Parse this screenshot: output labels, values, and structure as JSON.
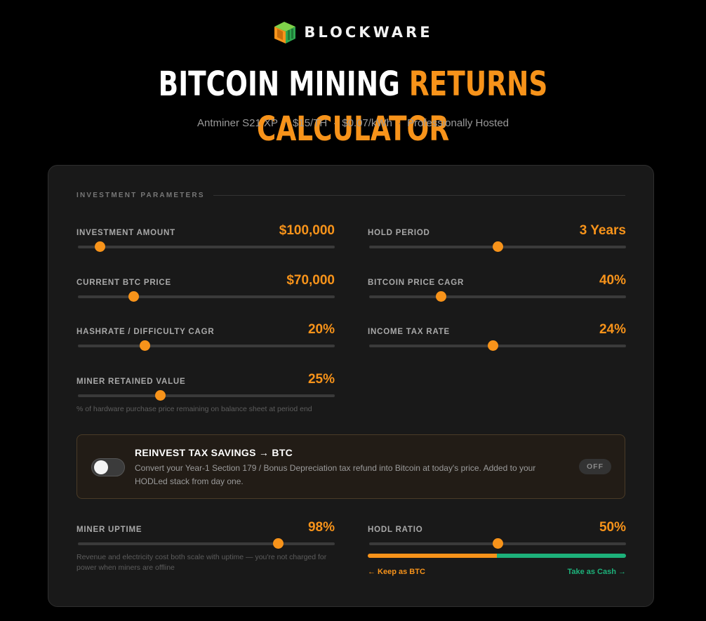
{
  "brand": {
    "name": "BLOCKWARE"
  },
  "title": {
    "part1": "BITCOIN MINING",
    "part2": "RETURNS CALCULATOR"
  },
  "subtitle": {
    "items": [
      "Antminer S21 XP",
      "$15/TH",
      "$0.07/kWh",
      "Professionally Hosted"
    ],
    "separator": "·"
  },
  "section": {
    "heading": "INVESTMENT PARAMETERS"
  },
  "params": {
    "investment": {
      "label": "INVESTMENT AMOUNT",
      "value": "$100,000",
      "position": 0.085
    },
    "hold": {
      "label": "HOLD PERIOD",
      "value": "3 Years",
      "position": 0.5
    },
    "btc_price": {
      "label": "CURRENT BTC PRICE",
      "value": "$70,000",
      "position": 0.215
    },
    "btc_cagr": {
      "label": "BITCOIN PRICE CAGR",
      "value": "40%",
      "position": 0.28
    },
    "hash_cagr": {
      "label": "HASHRATE / DIFFICULTY CAGR",
      "value": "20%",
      "position": 0.26
    },
    "tax_rate": {
      "label": "INCOME TAX RATE",
      "value": "24%",
      "position": 0.48
    },
    "retained": {
      "label": "MINER RETAINED VALUE",
      "value": "25%",
      "position": 0.32,
      "note": "% of hardware purchase price remaining on balance sheet at period end"
    },
    "uptime": {
      "label": "MINER UPTIME",
      "value": "98%",
      "position": 0.78,
      "note": "Revenue and electricity cost both scale with uptime — you're not charged for power when miners are offline"
    },
    "hodl": {
      "label": "HODL RATIO",
      "value": "50%",
      "position": 0.5
    }
  },
  "reinvest": {
    "title": "REINVEST TAX SAVINGS → BTC",
    "description": "Convert your Year-1 Section 179 / Bonus Depreciation tax refund into Bitcoin at today's price. Added to your HODLed stack from day one.",
    "state": "OFF"
  },
  "hodl_ratio": {
    "keep_label": "← Keep as BTC",
    "cash_label": "Take as Cash →",
    "btc_fraction": 0.5
  },
  "colors": {
    "accent": "#f7931a",
    "cash": "#1db17a",
    "panel": "#191919",
    "background": "#000000"
  }
}
